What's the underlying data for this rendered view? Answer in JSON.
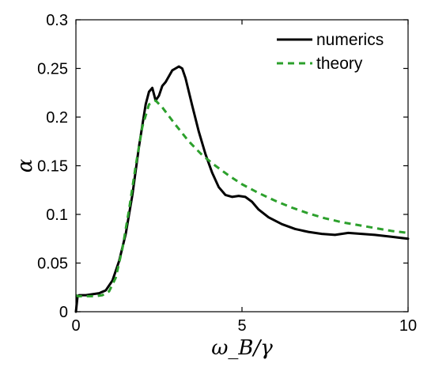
{
  "chart_data": {
    "type": "line",
    "title": "",
    "xlabel": "ω_B/γ",
    "ylabel": "α",
    "xlim": [
      0,
      10
    ],
    "ylim": [
      0,
      0.3
    ],
    "xticks": [
      0,
      5,
      10
    ],
    "yticks": [
      0,
      0.05,
      0.1,
      0.15,
      0.2,
      0.25,
      0.3
    ],
    "xtick_labels": [
      "0",
      "5",
      "10"
    ],
    "ytick_labels": [
      "0",
      "0.05",
      "0.1",
      "0.15",
      "0.2",
      "0.25",
      "0.3"
    ],
    "grid": false,
    "legend_position": "top-right",
    "series": [
      {
        "name": "numerics",
        "color": "#000000",
        "style": "solid",
        "x": [
          0,
          0.05,
          0.1,
          0.3,
          0.5,
          0.7,
          0.9,
          1.1,
          1.3,
          1.5,
          1.7,
          1.9,
          2.1,
          2.2,
          2.3,
          2.4,
          2.5,
          2.6,
          2.7,
          2.8,
          2.9,
          3.0,
          3.1,
          3.2,
          3.3,
          3.5,
          3.7,
          3.9,
          4.1,
          4.3,
          4.5,
          4.7,
          4.9,
          5.1,
          5.3,
          5.5,
          5.8,
          6.2,
          6.6,
          7.0,
          7.4,
          7.8,
          8.2,
          8.6,
          9.0,
          9.5,
          10.0
        ],
        "y": [
          0.0,
          0.016,
          0.017,
          0.017,
          0.018,
          0.019,
          0.022,
          0.032,
          0.052,
          0.08,
          0.12,
          0.17,
          0.213,
          0.226,
          0.23,
          0.217,
          0.222,
          0.232,
          0.236,
          0.242,
          0.248,
          0.25,
          0.252,
          0.25,
          0.24,
          0.212,
          0.185,
          0.162,
          0.143,
          0.128,
          0.12,
          0.118,
          0.119,
          0.118,
          0.113,
          0.105,
          0.097,
          0.09,
          0.085,
          0.082,
          0.08,
          0.079,
          0.081,
          0.08,
          0.079,
          0.077,
          0.075
        ]
      },
      {
        "name": "theory",
        "color": "#2ca02c",
        "style": "dashed",
        "x": [
          0,
          0.05,
          0.2,
          0.4,
          0.6,
          0.8,
          1.0,
          1.2,
          1.4,
          1.6,
          1.8,
          2.0,
          2.2,
          2.4,
          2.6,
          2.8,
          3.0,
          3.4,
          3.8,
          4.2,
          4.6,
          5.0,
          5.5,
          6.0,
          6.5,
          7.0,
          7.5,
          8.0,
          8.5,
          9.0,
          9.5,
          10.0
        ],
        "y": [
          0.017,
          0.016,
          0.016,
          0.016,
          0.016,
          0.017,
          0.021,
          0.035,
          0.065,
          0.105,
          0.15,
          0.19,
          0.213,
          0.217,
          0.21,
          0.201,
          0.192,
          0.175,
          0.161,
          0.15,
          0.14,
          0.131,
          0.122,
          0.114,
          0.107,
          0.101,
          0.096,
          0.092,
          0.089,
          0.086,
          0.083,
          0.081
        ]
      }
    ]
  }
}
